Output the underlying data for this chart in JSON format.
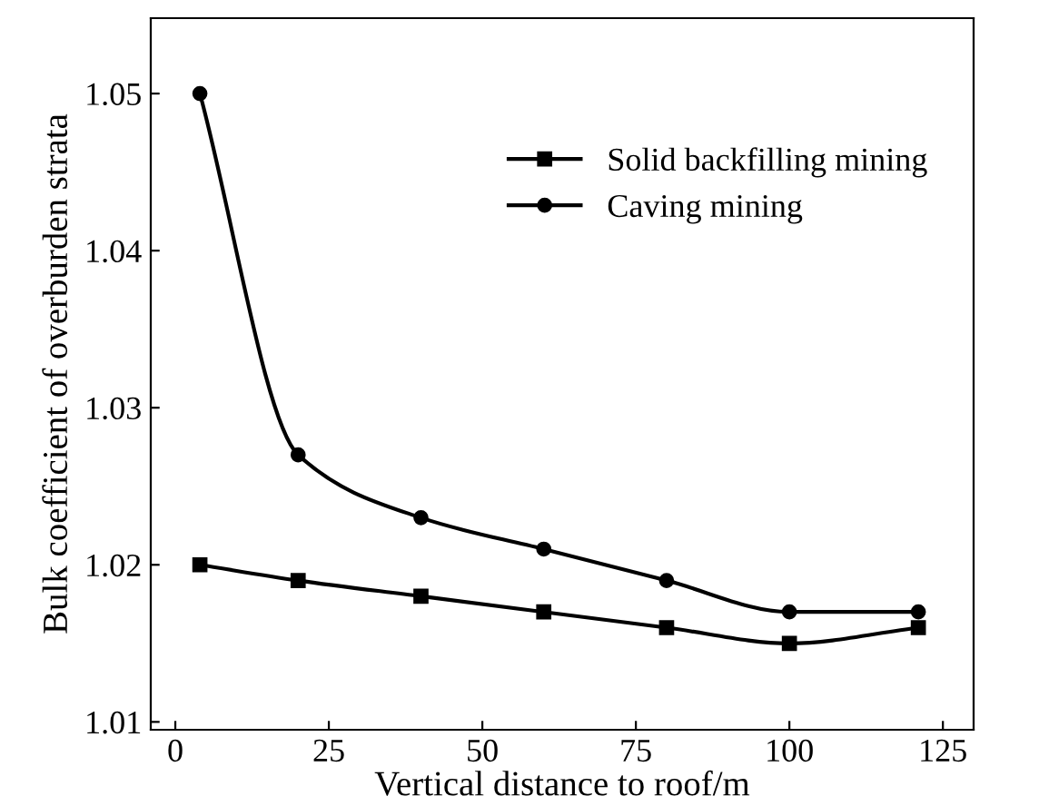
{
  "chart_data": {
    "type": "line",
    "xlabel": "Vertical distance to roof/m",
    "ylabel": "Bulk coefficient of overburden strata",
    "x": [
      4,
      20,
      40,
      60,
      80,
      100,
      121
    ],
    "series": [
      {
        "name": "Solid backfilling mining",
        "color": "#000000",
        "marker": "square",
        "values": [
          1.02,
          1.019,
          1.018,
          1.017,
          1.016,
          1.015,
          1.016
        ]
      },
      {
        "name": "Caving mining",
        "color": "#000000",
        "marker": "circle",
        "values": [
          1.05,
          1.027,
          1.023,
          1.021,
          1.019,
          1.017,
          1.017
        ]
      }
    ],
    "xlim": [
      -4,
      130
    ],
    "xticks": [
      0,
      25,
      50,
      75,
      100,
      125
    ],
    "ylim": [
      1.0095,
      1.0548
    ],
    "yticks": [
      1.01,
      1.02,
      1.03,
      1.04,
      1.05
    ],
    "legend": "top right",
    "grid": false,
    "line_style": "solid"
  }
}
